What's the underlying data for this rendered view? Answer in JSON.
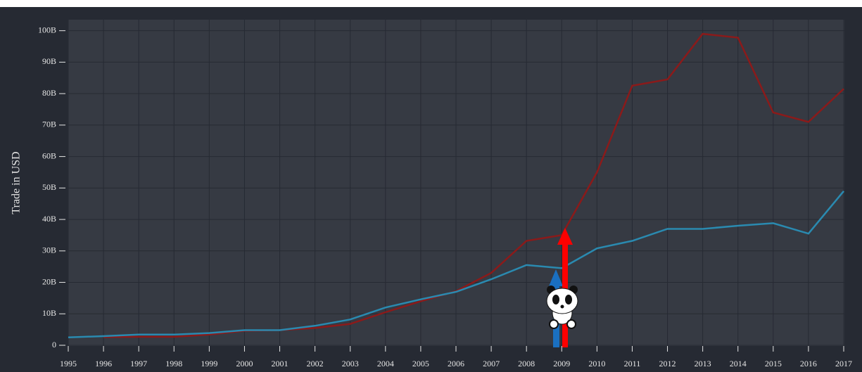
{
  "chart_data": {
    "type": "line",
    "y_label": "Trade in USD",
    "x": [
      1995,
      1996,
      1997,
      1998,
      1999,
      2000,
      2001,
      2002,
      2003,
      2004,
      2005,
      2006,
      2007,
      2008,
      2009,
      2010,
      2011,
      2012,
      2013,
      2014,
      2015,
      2016,
      2017
    ],
    "xlim": [
      1995,
      2017
    ],
    "xticks": [
      1995,
      1996,
      1997,
      1998,
      1999,
      2000,
      2001,
      2002,
      2003,
      2004,
      2005,
      2006,
      2007,
      2008,
      2009,
      2010,
      2011,
      2012,
      2013,
      2014,
      2015,
      2016,
      2017
    ],
    "ylim": [
      0,
      103.5
    ],
    "yticks": [
      0,
      {
        "value": 10,
        "label": "10B"
      },
      {
        "value": 20,
        "label": "20B"
      },
      {
        "value": 30,
        "label": "30B"
      },
      {
        "value": 40,
        "label": "40B"
      },
      {
        "value": 50,
        "label": "50B"
      },
      {
        "value": 60,
        "label": "60B"
      },
      {
        "value": 70,
        "label": "70B"
      },
      {
        "value": 80,
        "label": "80B"
      },
      {
        "value": 90,
        "label": "90B"
      },
      {
        "value": 100,
        "label": "100B"
      }
    ],
    "grid": true,
    "series": [
      {
        "color": "#8b1a1a",
        "values": [
          null,
          2.6,
          2.7,
          2.7,
          3.4,
          4.6,
          4.8,
          5.5,
          6.8,
          10.5,
          14,
          17.2,
          23,
          33.2,
          35,
          55,
          82.5,
          84.5,
          99,
          97.8,
          74,
          71,
          81.5
        ]
      },
      {
        "color": "#2a8ab0",
        "values": [
          2.5,
          2.9,
          3.4,
          3.4,
          3.9,
          4.8,
          4.8,
          6.2,
          8.2,
          12,
          14.6,
          17,
          21,
          25.5,
          24.5,
          30.8,
          33.2,
          37,
          37,
          38,
          38.8,
          35.5,
          49
        ]
      }
    ]
  }
}
